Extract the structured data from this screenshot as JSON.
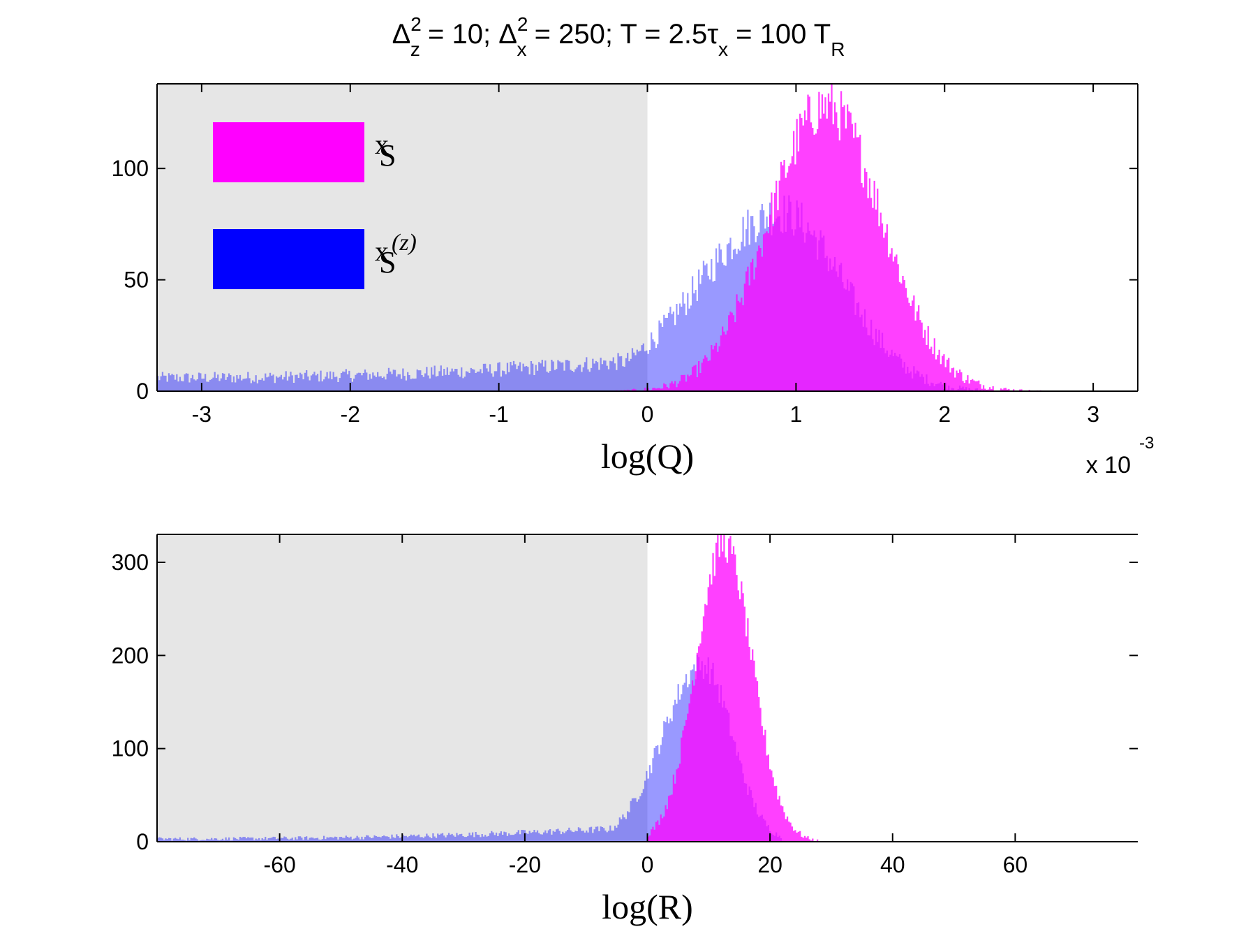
{
  "figure": {
    "title": {
      "delta_z": "Δ",
      "delta_z_sup": "2",
      "delta_z_sub": "z",
      "delta_z_val": " = 10;",
      "delta_x": "Δ",
      "delta_x_sup": "2",
      "delta_x_sub": "x",
      "delta_x_val": " = 250;",
      "t_part1": "T = 2.5τ",
      "t_part1_sub": "x",
      "t_part2": " = 100 T",
      "t_part2_sub": "R"
    },
    "colors": {
      "magenta": "#ff00ff",
      "blue": "#0000ff",
      "shade": "#e6e6e6"
    }
  },
  "chart_data": [
    {
      "type": "bar",
      "subtype": "histogram",
      "title": "",
      "xlabel": "log(Q)",
      "ylabel": "",
      "x_scale_note": "x 10",
      "x_scale_exp": "-3",
      "xlim": [
        -3.3,
        3.3
      ],
      "ylim": [
        0,
        138
      ],
      "xticks": [
        -3,
        -2,
        -1,
        0,
        1,
        2,
        3
      ],
      "xtick_labels": [
        "-3",
        "-2",
        "-1",
        "0",
        "1",
        "2",
        "3"
      ],
      "yticks": [
        0,
        50,
        100
      ],
      "ytick_labels": [
        "0",
        "50",
        "100"
      ],
      "shaded_region": {
        "from": -3.3,
        "to": 0
      },
      "legend": {
        "placement": "top-left",
        "entries": [
          {
            "label_main": "x",
            "label_sub": "S",
            "label_sup": "",
            "color": "#ff00ff"
          },
          {
            "label_main": "x",
            "label_sub": "S",
            "label_sup": "(z)",
            "color": "#0000ff"
          }
        ]
      },
      "series": [
        {
          "color": "#ff00ff",
          "opacity": 0.75,
          "distribution": "gaussian",
          "mean": 1.2,
          "std": 0.38,
          "peak": 128,
          "support": [
            -0.4,
            3.0
          ]
        },
        {
          "color": "#0000ff",
          "opacity": 0.4,
          "distribution": "skewed-left",
          "mean": 0.9,
          "std_right": 0.42,
          "std_left": 0.55,
          "peak": 80,
          "tail_level": 6,
          "tail_slope": 14,
          "support": [
            -3.3,
            2.3
          ]
        }
      ]
    },
    {
      "type": "bar",
      "subtype": "histogram",
      "title": "",
      "xlabel": "log(R)",
      "ylabel": "",
      "xlim": [
        -80,
        80
      ],
      "ylim": [
        0,
        330
      ],
      "xticks": [
        -60,
        -40,
        -20,
        0,
        20,
        40,
        60
      ],
      "xtick_labels": [
        "-60",
        "-40",
        "-20",
        "0",
        "20",
        "40",
        "60"
      ],
      "yticks": [
        0,
        100,
        200,
        300
      ],
      "ytick_labels": [
        "0",
        "100",
        "200",
        "300"
      ],
      "shaded_region": {
        "from": -80,
        "to": 0
      },
      "series": [
        {
          "color": "#ff00ff",
          "opacity": 0.75,
          "distribution": "gaussian",
          "mean": 12.5,
          "std": 4.6,
          "peak": 320,
          "support": [
            0,
            28
          ]
        },
        {
          "color": "#0000ff",
          "opacity": 0.4,
          "distribution": "skewed-left",
          "mean": 9,
          "std_right": 4.8,
          "std_left": 6.5,
          "peak": 190,
          "tail_level": 3,
          "tail_slope": 16,
          "support": [
            -80,
            22
          ]
        }
      ]
    }
  ]
}
